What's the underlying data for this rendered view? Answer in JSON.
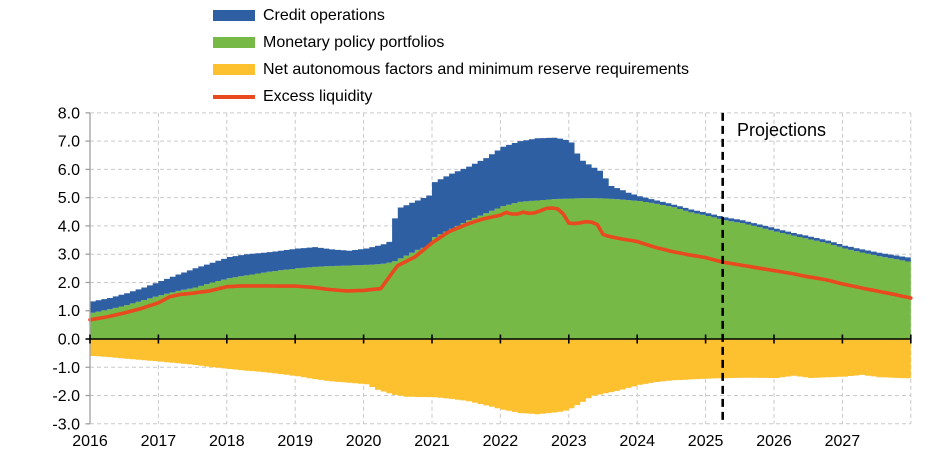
{
  "chart_data": {
    "type": "area",
    "stacked": true,
    "title": "",
    "xlabel": "",
    "ylabel": "",
    "legend_position": "top-left",
    "grid": true,
    "x_axis": {
      "min": 2016,
      "max": 2028,
      "tick_labels": [
        "2016",
        "2017",
        "2018",
        "2019",
        "2020",
        "2021",
        "2022",
        "2023",
        "2024",
        "2025",
        "2026",
        "2027"
      ]
    },
    "y_axis": {
      "min": -3.0,
      "max": 8.0,
      "tick_step": 1.0,
      "tick_labels": [
        "8.0",
        "7.0",
        "6.0",
        "5.0",
        "4.0",
        "3.0",
        "2.0",
        "1.0",
        "0.0",
        "-1.0",
        "-2.0",
        "-3.0"
      ]
    },
    "projection": {
      "label": "Projections",
      "start_year": 2025.25
    },
    "series": [
      {
        "name": "Credit operations",
        "type": "area",
        "stack": "positive-on-portfolios",
        "color": "#2E5FA3",
        "points": [
          [
            2016.0,
            0.4
          ],
          [
            2016.25,
            0.4
          ],
          [
            2016.5,
            0.42
          ],
          [
            2016.75,
            0.44
          ],
          [
            2017.0,
            0.5
          ],
          [
            2017.25,
            0.58
          ],
          [
            2017.5,
            0.68
          ],
          [
            2017.75,
            0.7
          ],
          [
            2018.0,
            0.75
          ],
          [
            2018.25,
            0.75
          ],
          [
            2018.5,
            0.7
          ],
          [
            2018.75,
            0.69
          ],
          [
            2019.0,
            0.7
          ],
          [
            2019.25,
            0.7
          ],
          [
            2019.5,
            0.59
          ],
          [
            2019.75,
            0.52
          ],
          [
            2020.0,
            0.58
          ],
          [
            2020.25,
            0.69
          ],
          [
            2020.33,
            0.7
          ],
          [
            2020.42,
            1.55
          ],
          [
            2020.5,
            1.8
          ],
          [
            2020.75,
            1.75
          ],
          [
            2020.92,
            1.78
          ],
          [
            2021.0,
            1.95
          ],
          [
            2021.25,
            1.95
          ],
          [
            2021.5,
            1.9
          ],
          [
            2021.75,
            1.95
          ],
          [
            2022.0,
            2.1
          ],
          [
            2022.25,
            2.15
          ],
          [
            2022.5,
            2.2
          ],
          [
            2022.75,
            2.17
          ],
          [
            2022.9,
            2.1
          ],
          [
            2023.0,
            1.98
          ],
          [
            2023.08,
            1.6
          ],
          [
            2023.17,
            1.32
          ],
          [
            2023.3,
            1.12
          ],
          [
            2023.45,
            0.94
          ],
          [
            2023.55,
            0.48
          ],
          [
            2023.7,
            0.37
          ],
          [
            2023.85,
            0.25
          ],
          [
            2024.0,
            0.17
          ],
          [
            2024.25,
            0.12
          ],
          [
            2024.5,
            0.09
          ],
          [
            2024.75,
            0.1
          ],
          [
            2025.0,
            0.1
          ],
          [
            2025.5,
            0.1
          ],
          [
            2026.0,
            0.1
          ],
          [
            2026.5,
            0.1
          ],
          [
            2027.0,
            0.1
          ],
          [
            2027.5,
            0.12
          ],
          [
            2028.0,
            0.15
          ]
        ]
      },
      {
        "name": "Monetary policy portfolios",
        "type": "area",
        "stack": "positive-base",
        "color": "#76B947",
        "points": [
          [
            2016.0,
            0.93
          ],
          [
            2016.25,
            1.05
          ],
          [
            2016.5,
            1.2
          ],
          [
            2016.75,
            1.38
          ],
          [
            2017.0,
            1.55
          ],
          [
            2017.25,
            1.7
          ],
          [
            2017.5,
            1.82
          ],
          [
            2017.75,
            2.0
          ],
          [
            2018.0,
            2.15
          ],
          [
            2018.25,
            2.25
          ],
          [
            2018.5,
            2.35
          ],
          [
            2018.75,
            2.43
          ],
          [
            2019.0,
            2.5
          ],
          [
            2019.25,
            2.55
          ],
          [
            2019.5,
            2.58
          ],
          [
            2019.75,
            2.6
          ],
          [
            2020.0,
            2.62
          ],
          [
            2020.25,
            2.66
          ],
          [
            2020.42,
            2.75
          ],
          [
            2020.5,
            2.85
          ],
          [
            2020.75,
            3.15
          ],
          [
            2020.92,
            3.3
          ],
          [
            2021.0,
            3.6
          ],
          [
            2021.25,
            3.9
          ],
          [
            2021.5,
            4.2
          ],
          [
            2021.75,
            4.45
          ],
          [
            2022.0,
            4.7
          ],
          [
            2022.25,
            4.85
          ],
          [
            2022.5,
            4.9
          ],
          [
            2022.75,
            4.95
          ],
          [
            2023.0,
            4.97
          ],
          [
            2023.25,
            4.98
          ],
          [
            2023.5,
            4.97
          ],
          [
            2023.75,
            4.93
          ],
          [
            2024.0,
            4.88
          ],
          [
            2024.25,
            4.78
          ],
          [
            2024.5,
            4.66
          ],
          [
            2024.75,
            4.48
          ],
          [
            2025.0,
            4.35
          ],
          [
            2025.25,
            4.2
          ],
          [
            2025.5,
            4.1
          ],
          [
            2025.75,
            3.95
          ],
          [
            2026.0,
            3.8
          ],
          [
            2026.25,
            3.65
          ],
          [
            2026.5,
            3.52
          ],
          [
            2026.75,
            3.38
          ],
          [
            2027.0,
            3.2
          ],
          [
            2027.25,
            3.06
          ],
          [
            2027.5,
            2.93
          ],
          [
            2027.75,
            2.82
          ],
          [
            2028.0,
            2.7
          ]
        ]
      },
      {
        "name": "Net autonomous factors and minimum reserve requirements",
        "type": "area",
        "stack": "negative-base",
        "color": "#FDC12F",
        "points": [
          [
            2016.0,
            -0.6
          ],
          [
            2016.25,
            -0.64
          ],
          [
            2016.5,
            -0.7
          ],
          [
            2016.75,
            -0.75
          ],
          [
            2017.0,
            -0.8
          ],
          [
            2017.25,
            -0.86
          ],
          [
            2017.5,
            -0.92
          ],
          [
            2017.75,
            -1.0
          ],
          [
            2018.0,
            -1.06
          ],
          [
            2018.25,
            -1.12
          ],
          [
            2018.5,
            -1.17
          ],
          [
            2018.75,
            -1.24
          ],
          [
            2019.0,
            -1.32
          ],
          [
            2019.25,
            -1.42
          ],
          [
            2019.5,
            -1.5
          ],
          [
            2019.75,
            -1.55
          ],
          [
            2020.0,
            -1.6
          ],
          [
            2020.17,
            -1.8
          ],
          [
            2020.42,
            -1.98
          ],
          [
            2020.58,
            -2.04
          ],
          [
            2020.75,
            -2.05
          ],
          [
            2021.0,
            -2.06
          ],
          [
            2021.25,
            -2.12
          ],
          [
            2021.5,
            -2.2
          ],
          [
            2021.75,
            -2.35
          ],
          [
            2022.0,
            -2.5
          ],
          [
            2022.25,
            -2.62
          ],
          [
            2022.5,
            -2.66
          ],
          [
            2022.75,
            -2.6
          ],
          [
            2022.9,
            -2.55
          ],
          [
            2023.0,
            -2.45
          ],
          [
            2023.15,
            -2.25
          ],
          [
            2023.3,
            -2.02
          ],
          [
            2023.5,
            -1.92
          ],
          [
            2023.7,
            -1.82
          ],
          [
            2023.85,
            -1.72
          ],
          [
            2024.0,
            -1.62
          ],
          [
            2024.25,
            -1.52
          ],
          [
            2024.5,
            -1.46
          ],
          [
            2024.75,
            -1.43
          ],
          [
            2025.0,
            -1.4
          ],
          [
            2025.5,
            -1.37
          ],
          [
            2026.0,
            -1.38
          ],
          [
            2026.25,
            -1.3
          ],
          [
            2026.5,
            -1.38
          ],
          [
            2027.0,
            -1.33
          ],
          [
            2027.25,
            -1.27
          ],
          [
            2027.5,
            -1.35
          ],
          [
            2028.0,
            -1.4
          ]
        ]
      },
      {
        "name": "Excess liquidity",
        "type": "line",
        "color": "#E8491F",
        "points": [
          [
            2016.0,
            0.68
          ],
          [
            2016.25,
            0.78
          ],
          [
            2016.5,
            0.92
          ],
          [
            2016.75,
            1.08
          ],
          [
            2017.0,
            1.28
          ],
          [
            2017.17,
            1.5
          ],
          [
            2017.33,
            1.58
          ],
          [
            2017.5,
            1.62
          ],
          [
            2017.75,
            1.7
          ],
          [
            2018.0,
            1.85
          ],
          [
            2018.25,
            1.88
          ],
          [
            2018.5,
            1.88
          ],
          [
            2018.75,
            1.87
          ],
          [
            2019.0,
            1.87
          ],
          [
            2019.25,
            1.83
          ],
          [
            2019.5,
            1.75
          ],
          [
            2019.75,
            1.7
          ],
          [
            2020.0,
            1.72
          ],
          [
            2020.25,
            1.78
          ],
          [
            2020.42,
            2.35
          ],
          [
            2020.5,
            2.6
          ],
          [
            2020.75,
            2.9
          ],
          [
            2021.0,
            3.4
          ],
          [
            2021.25,
            3.8
          ],
          [
            2021.5,
            4.05
          ],
          [
            2021.75,
            4.25
          ],
          [
            2022.0,
            4.38
          ],
          [
            2022.1,
            4.5
          ],
          [
            2022.2,
            4.38
          ],
          [
            2022.35,
            4.5
          ],
          [
            2022.45,
            4.42
          ],
          [
            2022.6,
            4.55
          ],
          [
            2022.7,
            4.65
          ],
          [
            2022.85,
            4.6
          ],
          [
            2022.95,
            4.35
          ],
          [
            2023.0,
            4.1
          ],
          [
            2023.1,
            4.08
          ],
          [
            2023.25,
            4.15
          ],
          [
            2023.4,
            4.12
          ],
          [
            2023.5,
            3.7
          ],
          [
            2023.6,
            3.62
          ],
          [
            2023.75,
            3.55
          ],
          [
            2024.0,
            3.45
          ],
          [
            2024.25,
            3.25
          ],
          [
            2024.5,
            3.1
          ],
          [
            2024.75,
            2.98
          ],
          [
            2025.0,
            2.88
          ],
          [
            2025.25,
            2.72
          ],
          [
            2025.5,
            2.62
          ],
          [
            2025.75,
            2.52
          ],
          [
            2026.0,
            2.42
          ],
          [
            2026.25,
            2.32
          ],
          [
            2026.5,
            2.2
          ],
          [
            2026.75,
            2.1
          ],
          [
            2027.0,
            1.95
          ],
          [
            2027.25,
            1.82
          ],
          [
            2027.5,
            1.7
          ],
          [
            2027.75,
            1.58
          ],
          [
            2028.0,
            1.45
          ]
        ]
      }
    ]
  }
}
